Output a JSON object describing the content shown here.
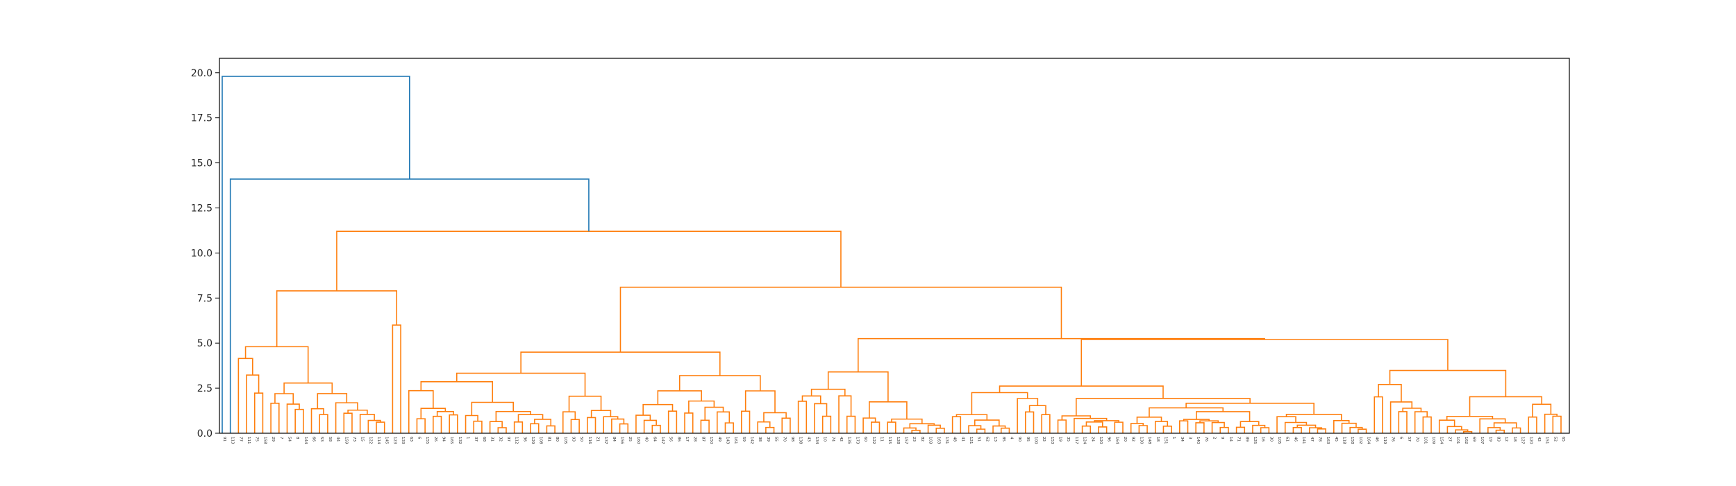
{
  "chart_data": {
    "type": "dendrogram",
    "title": "",
    "xlabel": "",
    "ylabel": "",
    "ylim": [
      0,
      20.8
    ],
    "yticks": [
      0.0,
      2.5,
      5.0,
      7.5,
      10.0,
      12.5,
      15.0,
      17.5,
      20.0
    ],
    "ytick_labels": [
      "0.0",
      "2.5",
      "5.0",
      "7.5",
      "10.0",
      "12.5",
      "15.0",
      "17.5",
      "20.0"
    ],
    "grid": false,
    "legend": "none",
    "colors": {
      "above_threshold": "#1f77b4",
      "cluster": "#ff7f0e"
    },
    "leaves": [
      "91",
      "113",
      "77",
      "111",
      "75",
      "158",
      "29",
      "7",
      "54",
      "8",
      "144",
      "66",
      "53",
      "58",
      "44",
      "159",
      "73",
      "15",
      "122",
      "114",
      "145",
      "123",
      "133",
      "63",
      "6",
      "155",
      "26",
      "94",
      "165",
      "132",
      "1",
      "37",
      "68",
      "31",
      "32",
      "97",
      "112",
      "36",
      "129",
      "108",
      "81",
      "80",
      "105",
      "93",
      "50",
      "116",
      "21",
      "137",
      "84",
      "156",
      "25",
      "160",
      "40",
      "64",
      "147",
      "56",
      "86",
      "17",
      "28",
      "87",
      "150",
      "49",
      "143",
      "161",
      "59",
      "142",
      "38",
      "39",
      "55",
      "70",
      "98",
      "138",
      "43",
      "134",
      "10",
      "74",
      "42",
      "135",
      "173",
      "60",
      "122",
      "11",
      "115",
      "128",
      "157",
      "23",
      "82",
      "103",
      "163",
      "131",
      "48",
      "41",
      "121",
      "51",
      "62",
      "13",
      "85",
      "4",
      "90",
      "95",
      "100",
      "22",
      "153",
      "19",
      "35",
      "117",
      "124",
      "24",
      "120",
      "96",
      "164",
      "20",
      "92",
      "130",
      "148",
      "18",
      "151",
      "1",
      "34",
      "3",
      "140",
      "76",
      "2",
      "9",
      "14",
      "71",
      "89",
      "125",
      "16",
      "30",
      "105",
      "61",
      "46",
      "141",
      "47",
      "78",
      "163",
      "45",
      "118",
      "158",
      "102",
      "164",
      "46",
      "119",
      "76",
      "6",
      "57",
      "70",
      "101",
      "109",
      "154",
      "27",
      "101",
      "162",
      "69",
      "107",
      "19",
      "83",
      "12",
      "18",
      "127",
      "120",
      "42",
      "151",
      "52",
      "65"
    ],
    "merges": [
      {
        "height": 19.8,
        "color": "#1f77b4"
      },
      {
        "height": 14.1,
        "color": "#1f77b4"
      },
      {
        "height": 11.2,
        "color": "#ff7f0e"
      },
      {
        "height": 8.1,
        "color": "#ff7f0e"
      },
      {
        "height": 7.9,
        "color": "#ff7f0e"
      },
      {
        "height": 6.0,
        "color": "#ff7f0e"
      },
      {
        "height": 5.2,
        "color": "#ff7f0e"
      },
      {
        "height": 4.8,
        "color": "#ff7f0e"
      },
      {
        "height": 4.5,
        "color": "#ff7f0e"
      },
      {
        "height": 3.4,
        "color": "#ff7f0e"
      },
      {
        "height": 3.5,
        "color": "#ff7f0e"
      },
      {
        "height": 2.9,
        "color": "#ff7f0e"
      },
      {
        "height": 2.8,
        "color": "#ff7f0e"
      },
      {
        "height": 2.8,
        "color": "#ff7f0e"
      },
      {
        "height": 2.5,
        "color": "#ff7f0e"
      },
      {
        "height": 2.4,
        "color": "#ff7f0e"
      },
      {
        "height": 2.3,
        "color": "#ff7f0e"
      },
      {
        "height": 2.2,
        "color": "#ff7f0e"
      },
      {
        "height": 1.8,
        "color": "#ff7f0e"
      },
      {
        "height": 1.6,
        "color": "#ff7f0e"
      }
    ]
  }
}
